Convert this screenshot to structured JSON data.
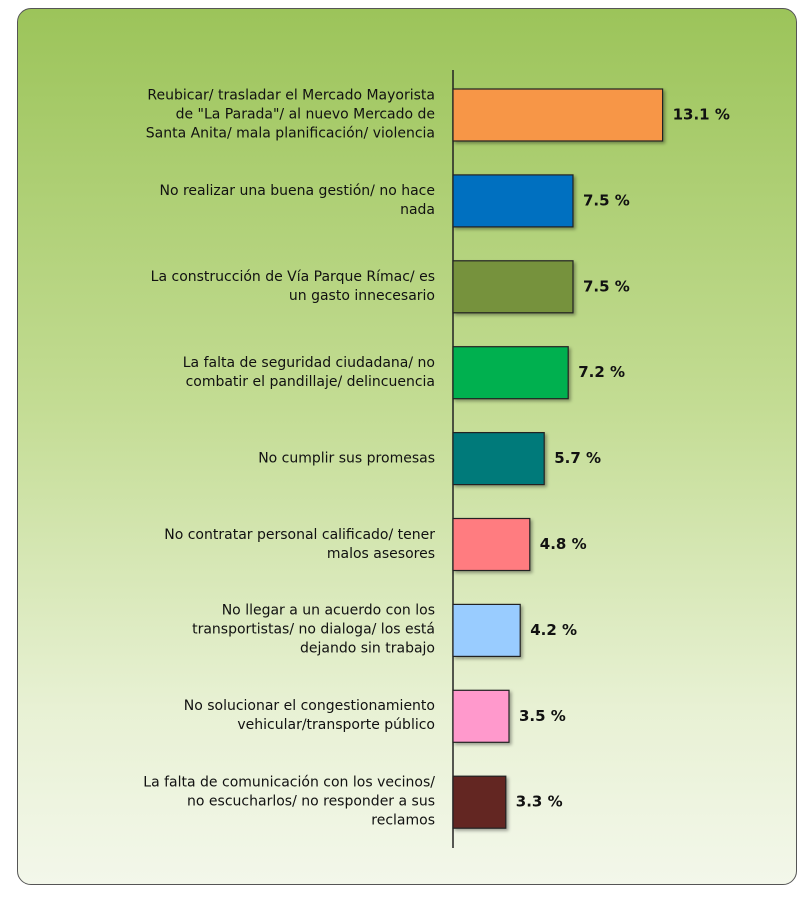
{
  "chart_data": {
    "type": "bar",
    "orientation": "horizontal",
    "categories": [
      "Reubicar/ trasladar el Mercado Mayorista\nde \"La Parada\"/ al nuevo Mercado de\nSanta Anita/ mala planificación/ violencia",
      "No realizar una buena gestión/ no hace\nnada",
      "La construcción de Vía Parque Rímac/ es\nun gasto innecesario",
      "La falta de seguridad ciudadana/ no\ncombatir el pandillaje/ delincuencia",
      "No cumplir sus promesas",
      "No contratar personal calificado/ tener\nmalos asesores",
      "No llegar a un acuerdo con los\ntransportistas/ no dialoga/ los está\ndejando sin trabajo",
      "No solucionar el congestionamiento\nvehicular/transporte público",
      "La falta de comunicación con los vecinos/\nno escucharlos/ no responder a sus\nreclamos"
    ],
    "values": [
      13.1,
      7.5,
      7.5,
      7.2,
      5.7,
      4.8,
      4.2,
      3.5,
      3.3
    ],
    "value_labels": [
      "13.1 %",
      "7.5 %",
      "7.5 %",
      "7.2 %",
      "5.7 %",
      "4.8 %",
      "4.2 %",
      "3.5 %",
      "3.3 %"
    ],
    "colors": [
      "#f79646",
      "#0070c0",
      "#76923c",
      "#00b050",
      "#007a7a",
      "#ff7c80",
      "#99ccff",
      "#ff99cc",
      "#632523"
    ]
  }
}
